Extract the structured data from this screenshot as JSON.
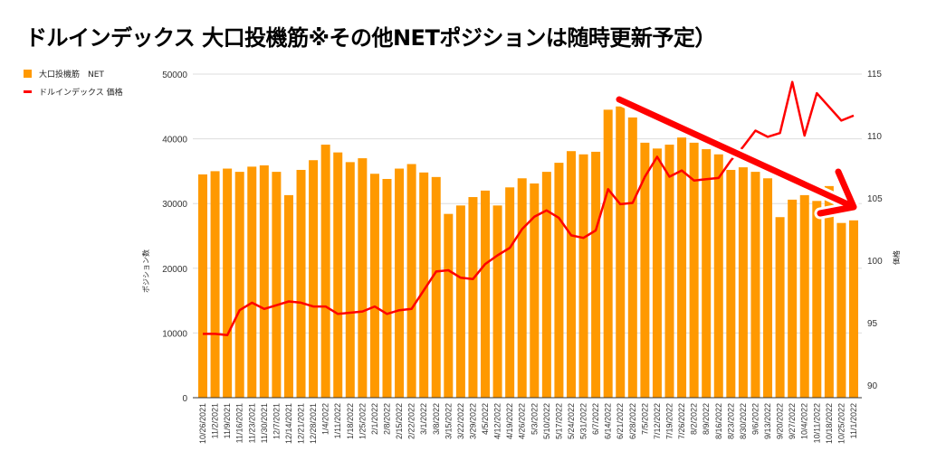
{
  "chart_data": {
    "type": "bar+line",
    "title": "ドルインデックス 大口投機筋※その他NETポジションは随時更新予定）",
    "ylabel": "ポジション数",
    "y2label": "価格",
    "ylim": [
      0,
      50000
    ],
    "y2lim": [
      90,
      115
    ],
    "yticks": [
      "0",
      "10000",
      "20000",
      "30000",
      "40000",
      "50000"
    ],
    "y2ticks": [
      "90",
      "95",
      "100",
      "105",
      "110",
      "115"
    ],
    "legend": [
      "大口投機筋　NET",
      "ドルインデックス 価格"
    ],
    "legend_position": "top-left",
    "colors": {
      "bar": "#ff9900",
      "line": "#ff0000",
      "arrow": "#ff0000"
    },
    "categories": [
      "10/26/2021",
      "11/2/2021",
      "11/9/2021",
      "11/16/2021",
      "11/23/2021",
      "11/30/2021",
      "12/7/2021",
      "12/14/2021",
      "12/21/2021",
      "12/28/2021",
      "1/4/2022",
      "1/11/2022",
      "1/18/2022",
      "1/25/2022",
      "2/1/2022",
      "2/8/2022",
      "2/15/2022",
      "2/22/2022",
      "3/1/2022",
      "3/8/2022",
      "3/15/2022",
      "3/22/2022",
      "3/29/2022",
      "4/5/2022",
      "4/12/2022",
      "4/19/2022",
      "4/26/2022",
      "5/3/2022",
      "5/10/2022",
      "5/17/2022",
      "5/24/2022",
      "5/31/2022",
      "6/7/2022",
      "6/14/2022",
      "6/21/2022",
      "6/28/2022",
      "7/5/2022",
      "7/12/2022",
      "7/19/2022",
      "7/26/2022",
      "8/2/2022",
      "8/9/2022",
      "8/16/2022",
      "8/23/2022",
      "8/30/2022",
      "9/6/2022",
      "9/13/2022",
      "9/20/2022",
      "9/27/2022",
      "10/4/2022",
      "10/11/2022",
      "10/18/2022",
      "10/25/2022",
      "11/1/2022"
    ],
    "series": [
      {
        "name": "大口投機筋　NET",
        "type": "bar",
        "axis": "left",
        "values": [
          34500,
          35000,
          35400,
          34900,
          35700,
          35900,
          34900,
          31300,
          35200,
          36700,
          39100,
          37900,
          36400,
          37000,
          34600,
          33800,
          35400,
          36100,
          34800,
          34100,
          28400,
          29700,
          31000,
          32000,
          29700,
          32500,
          33900,
          33100,
          34900,
          36300,
          38100,
          37600,
          38000,
          44500,
          45000,
          43300,
          39400,
          38500,
          39100,
          40200,
          39400,
          38400,
          37600,
          35200,
          35600,
          34900,
          33900,
          27900,
          30600,
          31300,
          30400,
          32700,
          27000,
          27400
        ]
      },
      {
        "name": "ドルインデックス 価格",
        "type": "line",
        "axis": "right",
        "values": [
          94.1,
          94.1,
          94.0,
          96.0,
          96.6,
          96.1,
          96.4,
          96.7,
          96.6,
          96.3,
          96.3,
          95.7,
          95.8,
          95.9,
          96.3,
          95.7,
          96.0,
          96.1,
          97.6,
          99.1,
          99.2,
          98.6,
          98.5,
          99.7,
          100.4,
          101.0,
          102.5,
          103.5,
          104.0,
          103.4,
          102.0,
          101.8,
          102.4,
          105.7,
          104.5,
          104.6,
          106.7,
          108.3,
          106.7,
          107.2,
          106.4,
          106.5,
          106.6,
          108.0,
          109.1,
          110.4,
          109.9,
          110.2,
          114.3,
          110.0,
          113.4,
          112.3,
          111.2,
          111.6
        ]
      }
    ],
    "annotations": [
      {
        "type": "arrow",
        "from_category": "6/21/2022",
        "to_category": "11/1/2022",
        "meaning": "downtrend"
      }
    ]
  }
}
